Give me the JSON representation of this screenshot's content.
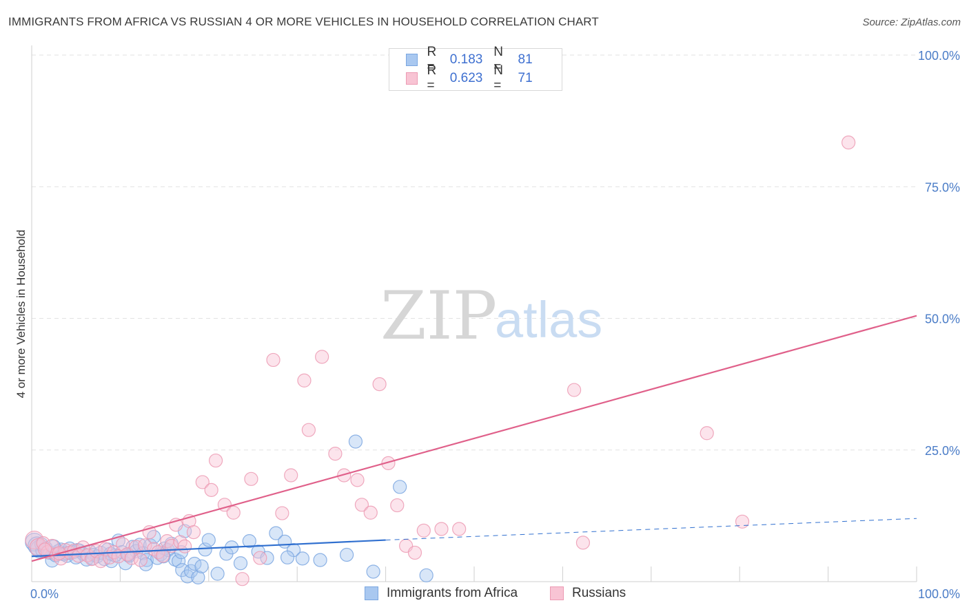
{
  "header": {
    "title": "IMMIGRANTS FROM AFRICA VS RUSSIAN 4 OR MORE VEHICLES IN HOUSEHOLD CORRELATION CHART",
    "source": "Source: ZipAtlas.com"
  },
  "watermark": {
    "part1": "ZIP",
    "part2": "atlas"
  },
  "legend_top": [
    {
      "r_label": "R =",
      "r_value": "0.183",
      "n_label": "N =",
      "n_value": "81",
      "color": "#a9c8f0",
      "border": "#7aa6e0"
    },
    {
      "r_label": "R =",
      "r_value": "0.623",
      "n_label": "N =",
      "n_value": "71",
      "color": "#f8c4d4",
      "border": "#ec9ab3"
    }
  ],
  "legend_bottom": [
    {
      "label": "Immigrants from Africa",
      "color": "#a9c8f0",
      "border": "#7aa6e0"
    },
    {
      "label": "Russians",
      "color": "#f8c4d4",
      "border": "#ec9ab3"
    }
  ],
  "chart_data": {
    "type": "scatter",
    "title": "IMMIGRANTS FROM AFRICA VS RUSSIAN 4 OR MORE VEHICLES IN HOUSEHOLD CORRELATION CHART",
    "xlabel": "",
    "ylabel": "4 or more Vehicles in Household",
    "xlim": [
      0,
      100
    ],
    "ylim": [
      0,
      100
    ],
    "x_tick_labels": [
      "0.0%",
      "100.0%"
    ],
    "y_ticks": [
      25,
      50,
      75,
      100
    ],
    "y_tick_labels": [
      "25.0%",
      "50.0%",
      "75.0%",
      "100.0%"
    ],
    "grid": true,
    "legend_position": "top-center",
    "series": [
      {
        "name": "Immigrants from Africa",
        "color": "#7aa6e0",
        "line_color": "#2f6fcf",
        "trend": {
          "x": [
            0,
            40,
            100
          ],
          "y": [
            4.8,
            7.9,
            12.0
          ],
          "solid_until": 40
        },
        "points": [
          [
            0.3,
            7.5
          ],
          [
            0.6,
            6.8
          ],
          [
            0.9,
            6.2
          ],
          [
            1.2,
            5.9
          ],
          [
            1.6,
            6.4
          ],
          [
            2.0,
            5.5
          ],
          [
            2.3,
            4.0
          ],
          [
            2.7,
            5.0
          ],
          [
            3.0,
            5.8
          ],
          [
            3.3,
            6.1
          ],
          [
            3.6,
            5.2
          ],
          [
            4.0,
            4.9
          ],
          [
            4.3,
            6.3
          ],
          [
            4.7,
            5.6
          ],
          [
            5.0,
            4.6
          ],
          [
            5.4,
            5.9
          ],
          [
            5.8,
            5.3
          ],
          [
            6.2,
            4.2
          ],
          [
            6.6,
            5.7
          ],
          [
            7.0,
            5.1
          ],
          [
            7.4,
            4.8
          ],
          [
            7.8,
            5.5
          ],
          [
            8.2,
            4.3
          ],
          [
            8.6,
            6.1
          ],
          [
            9.0,
            3.9
          ],
          [
            9.4,
            5.0
          ],
          [
            9.8,
            7.8
          ],
          [
            10.2,
            5.6
          ],
          [
            10.6,
            3.5
          ],
          [
            11.0,
            4.9
          ],
          [
            11.4,
            6.6
          ],
          [
            11.8,
            5.8
          ],
          [
            12.2,
            7.0
          ],
          [
            12.6,
            5.4
          ],
          [
            13.0,
            4.1
          ],
          [
            13.4,
            6.9
          ],
          [
            13.8,
            8.5
          ],
          [
            14.2,
            4.5
          ],
          [
            14.6,
            5.2
          ],
          [
            15.0,
            6.3
          ],
          [
            15.4,
            6.0
          ],
          [
            15.8,
            7.2
          ],
          [
            16.2,
            4.2
          ],
          [
            16.6,
            3.9
          ],
          [
            17.0,
            2.2
          ],
          [
            17.3,
            9.6
          ],
          [
            17.6,
            1.0
          ],
          [
            18.0,
            2.0
          ],
          [
            18.4,
            3.4
          ],
          [
            18.8,
            0.8
          ],
          [
            19.2,
            2.9
          ],
          [
            19.6,
            6.1
          ],
          [
            20.0,
            7.9
          ],
          [
            21.0,
            1.5
          ],
          [
            22.0,
            5.3
          ],
          [
            22.6,
            6.5
          ],
          [
            23.6,
            3.5
          ],
          [
            24.6,
            7.7
          ],
          [
            25.6,
            5.7
          ],
          [
            26.6,
            4.5
          ],
          [
            27.6,
            9.2
          ],
          [
            28.6,
            7.6
          ],
          [
            29.6,
            6.0
          ],
          [
            30.6,
            4.4
          ],
          [
            32.6,
            4.1
          ],
          [
            35.6,
            5.1
          ],
          [
            36.6,
            26.6
          ],
          [
            38.6,
            1.9
          ],
          [
            41.6,
            18.0
          ],
          [
            44.6,
            1.2
          ],
          [
            1.1,
            7.1
          ],
          [
            2.5,
            6.7
          ],
          [
            3.9,
            5.4
          ],
          [
            5.2,
            6.0
          ],
          [
            6.9,
            4.4
          ],
          [
            8.9,
            5.3
          ],
          [
            10.9,
            5.1
          ],
          [
            12.9,
            3.3
          ],
          [
            14.9,
            4.8
          ],
          [
            16.9,
            5.6
          ],
          [
            28.9,
            4.6
          ]
        ]
      },
      {
        "name": "Russians",
        "color": "#ec9ab3",
        "line_color": "#e0608a",
        "trend": {
          "x": [
            0,
            100
          ],
          "y": [
            3.9,
            50.5
          ],
          "solid_until": 100
        },
        "points": [
          [
            0.3,
            7.9
          ],
          [
            0.8,
            6.5
          ],
          [
            1.3,
            7.3
          ],
          [
            1.8,
            5.6
          ],
          [
            2.3,
            6.8
          ],
          [
            2.8,
            5.2
          ],
          [
            3.3,
            4.4
          ],
          [
            3.8,
            6.0
          ],
          [
            4.3,
            5.5
          ],
          [
            4.8,
            5.9
          ],
          [
            5.3,
            4.9
          ],
          [
            5.8,
            6.5
          ],
          [
            6.3,
            5.0
          ],
          [
            6.8,
            4.3
          ],
          [
            7.3,
            5.8
          ],
          [
            7.8,
            3.9
          ],
          [
            8.3,
            6.2
          ],
          [
            8.8,
            4.6
          ],
          [
            9.3,
            5.6
          ],
          [
            9.8,
            4.8
          ],
          [
            10.3,
            7.1
          ],
          [
            10.8,
            5.2
          ],
          [
            11.3,
            4.5
          ],
          [
            11.8,
            6.6
          ],
          [
            12.3,
            4.1
          ],
          [
            12.8,
            6.9
          ],
          [
            13.3,
            9.4
          ],
          [
            13.8,
            6.2
          ],
          [
            14.3,
            5.6
          ],
          [
            14.8,
            4.9
          ],
          [
            15.3,
            7.7
          ],
          [
            15.8,
            6.8
          ],
          [
            16.3,
            10.8
          ],
          [
            16.8,
            7.5
          ],
          [
            17.3,
            6.7
          ],
          [
            17.8,
            11.5
          ],
          [
            18.3,
            9.4
          ],
          [
            19.3,
            18.9
          ],
          [
            20.3,
            17.4
          ],
          [
            20.8,
            23.0
          ],
          [
            21.8,
            14.6
          ],
          [
            22.8,
            13.1
          ],
          [
            23.8,
            0.5
          ],
          [
            24.8,
            19.5
          ],
          [
            25.8,
            4.5
          ],
          [
            27.3,
            42.1
          ],
          [
            28.3,
            13.0
          ],
          [
            29.3,
            20.2
          ],
          [
            30.8,
            38.2
          ],
          [
            31.3,
            28.8
          ],
          [
            32.8,
            42.7
          ],
          [
            34.3,
            24.3
          ],
          [
            35.3,
            20.2
          ],
          [
            36.8,
            19.3
          ],
          [
            37.3,
            14.6
          ],
          [
            38.3,
            13.1
          ],
          [
            39.3,
            37.5
          ],
          [
            40.3,
            22.5
          ],
          [
            41.3,
            14.5
          ],
          [
            42.3,
            6.8
          ],
          [
            44.3,
            9.7
          ],
          [
            46.3,
            10.0
          ],
          [
            48.3,
            10.0
          ],
          [
            61.3,
            36.4
          ],
          [
            62.3,
            7.4
          ],
          [
            76.3,
            28.2
          ],
          [
            80.3,
            11.4
          ],
          [
            92.3,
            83.4
          ],
          [
            1.5,
            6.1
          ],
          [
            3.1,
            5.4
          ],
          [
            43.3,
            5.5
          ]
        ]
      }
    ]
  }
}
